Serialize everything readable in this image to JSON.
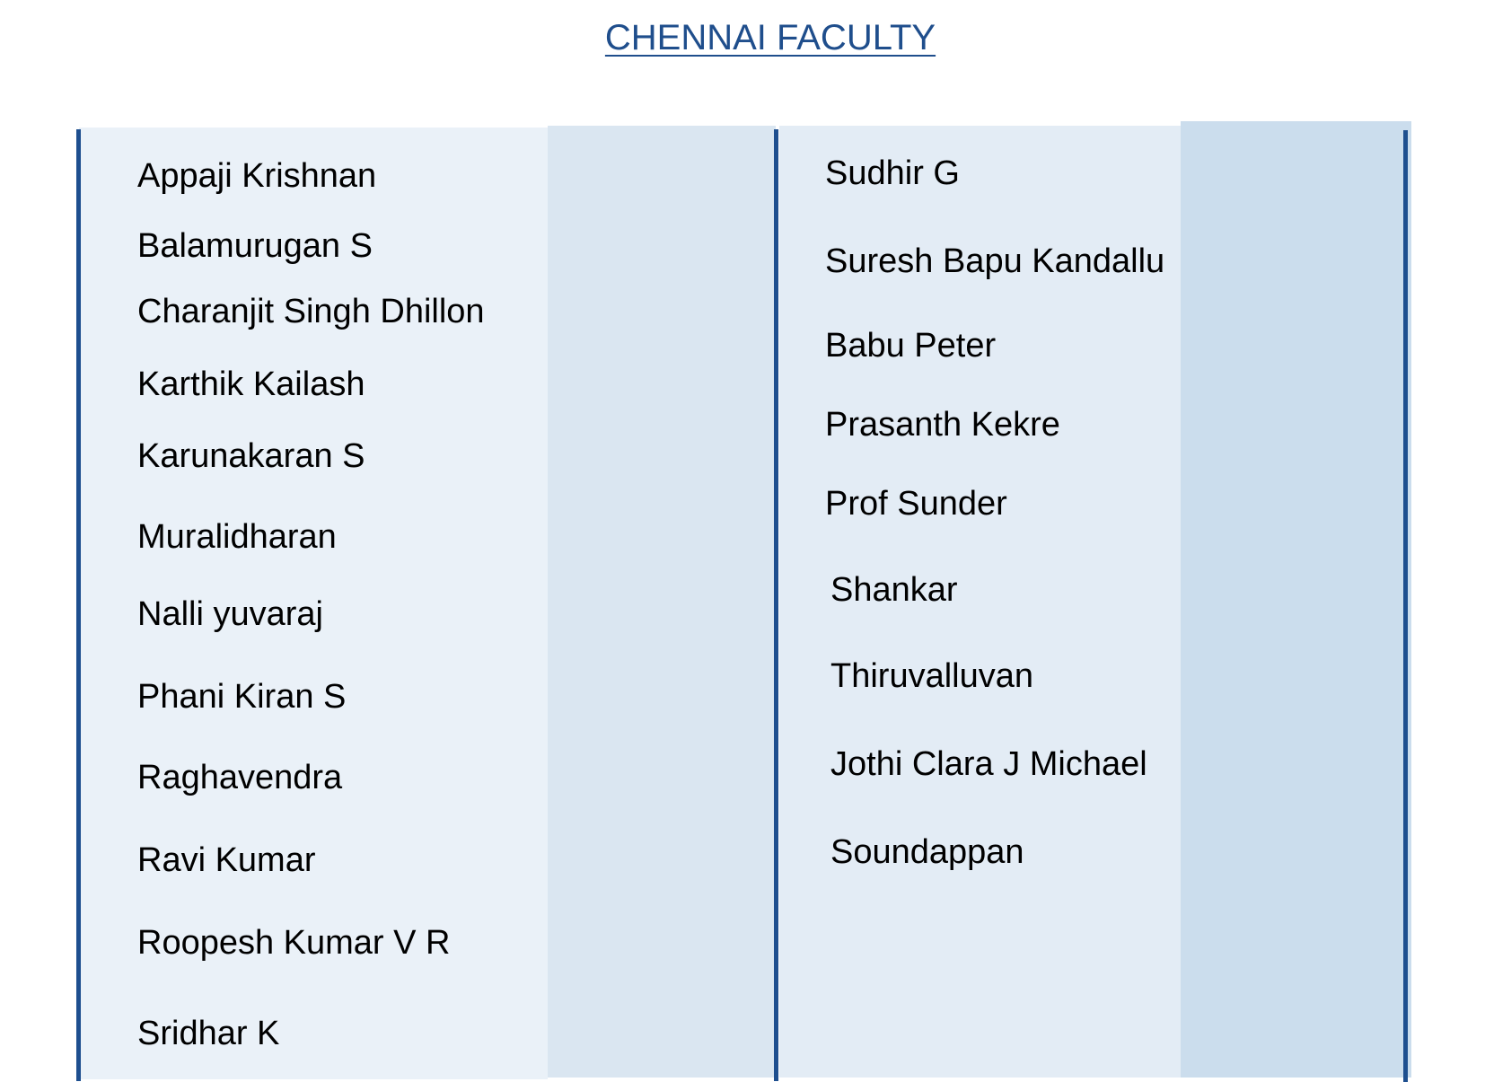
{
  "title": "CHENNAI FACULTY",
  "colors": {
    "title": "#1f4e8c",
    "border": "#1e4f8f",
    "panel_light": "#eaf1f8",
    "panel_mid": "#dae6f1",
    "panel_dark": "#cbdded"
  },
  "left_column": [
    "Appaji Krishnan",
    "Balamurugan S",
    "Charanjit Singh Dhillon",
    "Karthik Kailash",
    "Karunakaran S",
    "Muralidharan",
    "Nalli yuvaraj",
    "Phani Kiran S",
    "Raghavendra",
    "Ravi Kumar",
    "Roopesh Kumar V R",
    "Sridhar K"
  ],
  "right_column": [
    "Sudhir G",
    "Suresh Bapu Kandallu",
    "Babu Peter",
    "Prasanth Kekre",
    "Prof Sunder",
    "Shankar",
    "Thiruvalluvan",
    "Jothi Clara J Michael",
    "Soundappan"
  ]
}
